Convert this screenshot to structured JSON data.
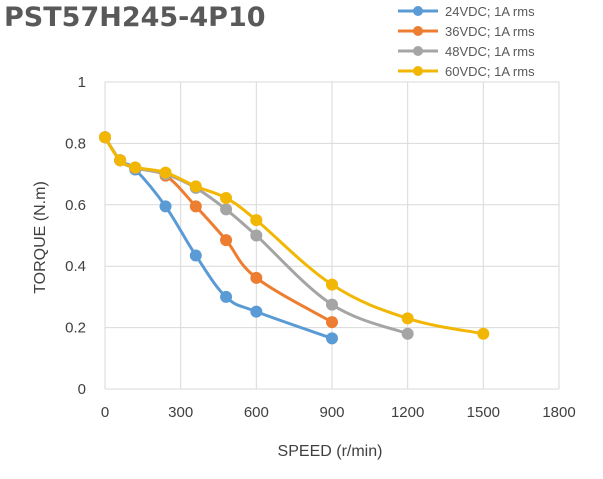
{
  "title": "PST57H245-4P10",
  "chart_data": {
    "type": "line",
    "title": "PST57H245-4P10",
    "xlabel": "SPEED (r/min)",
    "ylabel": "TORQUE (N.m)",
    "xlim": [
      0,
      1800
    ],
    "ylim": [
      0,
      1
    ],
    "xticks": [
      0,
      300,
      600,
      900,
      1200,
      1500,
      1800
    ],
    "yticks": [
      0,
      0.2,
      0.4,
      0.6,
      0.8,
      1
    ],
    "ytick_labels": [
      "0",
      "0.2",
      "0.4",
      "0.6",
      "0.8",
      "1"
    ],
    "grid": true,
    "legend_position": "top-right",
    "series": [
      {
        "name": "24VDC; 1A rms",
        "color": "#5B9BD5",
        "points": [
          [
            0,
            0.82
          ],
          [
            60,
            0.745
          ],
          [
            120,
            0.715
          ],
          [
            240,
            0.595
          ],
          [
            360,
            0.435
          ],
          [
            480,
            0.3
          ],
          [
            600,
            0.252
          ],
          [
            900,
            0.165
          ]
        ]
      },
      {
        "name": "36VDC; 1A rms",
        "color": "#ED7D31",
        "points": [
          [
            0,
            0.82
          ],
          [
            60,
            0.745
          ],
          [
            120,
            0.72
          ],
          [
            240,
            0.695
          ],
          [
            360,
            0.595
          ],
          [
            480,
            0.485
          ],
          [
            600,
            0.362
          ],
          [
            900,
            0.218
          ]
        ]
      },
      {
        "name": "48VDC; 1A rms",
        "color": "#A5A5A5",
        "points": [
          [
            0,
            0.82
          ],
          [
            60,
            0.745
          ],
          [
            120,
            0.72
          ],
          [
            240,
            0.7
          ],
          [
            360,
            0.655
          ],
          [
            480,
            0.585
          ],
          [
            600,
            0.5
          ],
          [
            900,
            0.275
          ],
          [
            1200,
            0.18
          ]
        ]
      },
      {
        "name": "60VDC; 1A rms",
        "color": "#F2B705",
        "points": [
          [
            0,
            0.82
          ],
          [
            60,
            0.745
          ],
          [
            120,
            0.722
          ],
          [
            240,
            0.705
          ],
          [
            360,
            0.66
          ],
          [
            480,
            0.622
          ],
          [
            600,
            0.55
          ],
          [
            900,
            0.34
          ],
          [
            1200,
            0.23
          ],
          [
            1500,
            0.18
          ]
        ]
      }
    ]
  }
}
